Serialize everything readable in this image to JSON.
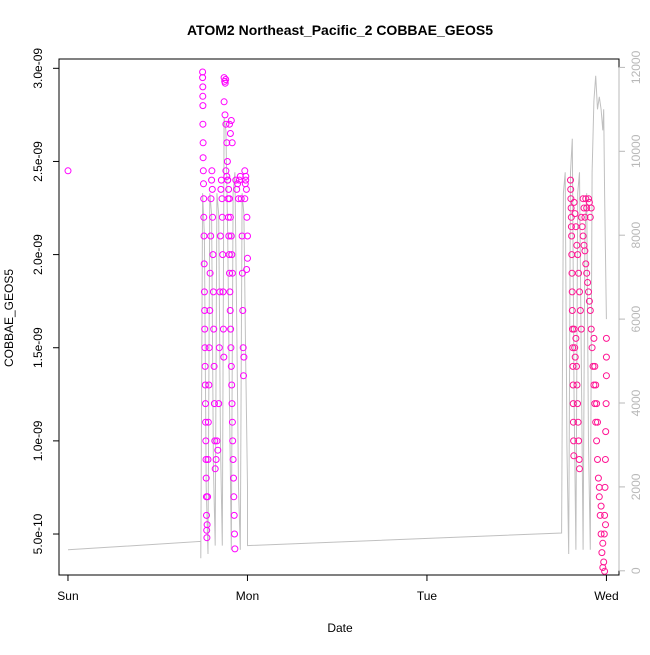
{
  "chart_data": {
    "type": "scatter",
    "title": "ATOM2 Northeast_Pacific_2 COBBAE_GEOS5",
    "xlabel": "Date",
    "ylabel": "COBBAE_GEOS5",
    "x_ticks": [
      {
        "x": 0,
        "label": "Sun"
      },
      {
        "x": 1,
        "label": "Mon"
      },
      {
        "x": 2,
        "label": "Tue"
      },
      {
        "x": 3,
        "label": "Wed"
      }
    ],
    "y_ticks": [
      {
        "value": 5e-10,
        "label": "5.0e-10"
      },
      {
        "value": 1e-09,
        "label": "1.0e-09"
      },
      {
        "value": 1.5e-09,
        "label": "1.5e-09"
      },
      {
        "value": 2e-09,
        "label": "2.0e-09"
      },
      {
        "value": 2.5e-09,
        "label": "2.5e-09"
      },
      {
        "value": 3e-09,
        "label": "3.0e-09"
      }
    ],
    "y2_ticks": [
      {
        "value": 0,
        "label": "0"
      },
      {
        "value": 2000,
        "label": "2000"
      },
      {
        "value": 4000,
        "label": "4000"
      },
      {
        "value": 6000,
        "label": "6000"
      },
      {
        "value": 8000,
        "label": "8000"
      },
      {
        "value": 10000,
        "label": "10000"
      },
      {
        "value": 12000,
        "label": "12000"
      }
    ],
    "xlim": [
      -0.05,
      3.07
    ],
    "ylim": [
      2.8e-10,
      3.05e-09
    ],
    "y2lim": [
      -100,
      12200
    ],
    "grid": false,
    "colors": {
      "magenta": "#ff00ff",
      "pink": "#ff1493",
      "altitude": "#c0c0c0",
      "axis": "#000000",
      "y2_axis": "#b8b8b8"
    },
    "series": [
      {
        "kind": "points",
        "color_key": "magenta",
        "points": [
          [
            0.0,
            2.45e-09
          ],
          [
            0.75,
            2.98e-09
          ],
          [
            0.75,
            2.95e-09
          ],
          [
            0.751,
            2.9e-09
          ],
          [
            0.751,
            2.85e-09
          ],
          [
            0.752,
            2.8e-09
          ],
          [
            0.752,
            2.7e-09
          ],
          [
            0.753,
            2.6e-09
          ],
          [
            0.753,
            2.52e-09
          ],
          [
            0.754,
            2.45e-09
          ],
          [
            0.755,
            2.38e-09
          ],
          [
            0.756,
            2.3e-09
          ],
          [
            0.757,
            2.2e-09
          ],
          [
            0.758,
            2.1e-09
          ],
          [
            0.759,
            1.95e-09
          ],
          [
            0.76,
            1.8e-09
          ],
          [
            0.761,
            1.7e-09
          ],
          [
            0.762,
            1.6e-09
          ],
          [
            0.763,
            1.5e-09
          ],
          [
            0.764,
            1.4e-09
          ],
          [
            0.765,
            1.3e-09
          ],
          [
            0.766,
            1.2e-09
          ],
          [
            0.767,
            1.1e-09
          ],
          [
            0.768,
            1e-09
          ],
          [
            0.769,
            9e-10
          ],
          [
            0.77,
            8e-10
          ],
          [
            0.771,
            7e-10
          ],
          [
            0.772,
            6e-10
          ],
          [
            0.773,
            5.2e-10
          ],
          [
            0.774,
            4.8e-10
          ],
          [
            0.775,
            5.5e-10
          ],
          [
            0.778,
            7e-10
          ],
          [
            0.78,
            9e-10
          ],
          [
            0.782,
            1.1e-09
          ],
          [
            0.785,
            1.3e-09
          ],
          [
            0.787,
            1.5e-09
          ],
          [
            0.79,
            1.7e-09
          ],
          [
            0.792,
            1.9e-09
          ],
          [
            0.795,
            2.1e-09
          ],
          [
            0.797,
            2.3e-09
          ],
          [
            0.8,
            2.4e-09
          ],
          [
            0.802,
            2.45e-09
          ],
          [
            0.804,
            2.35e-09
          ],
          [
            0.806,
            2.2e-09
          ],
          [
            0.808,
            2e-09
          ],
          [
            0.81,
            1.8e-09
          ],
          [
            0.812,
            1.6e-09
          ],
          [
            0.814,
            1.4e-09
          ],
          [
            0.816,
            1.2e-09
          ],
          [
            0.818,
            1e-09
          ],
          [
            0.82,
            8.5e-10
          ],
          [
            0.825,
            9e-10
          ],
          [
            0.83,
            1e-09
          ],
          [
            0.835,
            9.5e-10
          ],
          [
            0.84,
            1.2e-09
          ],
          [
            0.843,
            1.5e-09
          ],
          [
            0.846,
            1.8e-09
          ],
          [
            0.849,
            2.1e-09
          ],
          [
            0.852,
            2.35e-09
          ],
          [
            0.855,
            2.4e-09
          ],
          [
            0.858,
            2.3e-09
          ],
          [
            0.86,
            2.2e-09
          ],
          [
            0.862,
            2e-09
          ],
          [
            0.864,
            1.8e-09
          ],
          [
            0.866,
            1.6e-09
          ],
          [
            0.868,
            1.45e-09
          ],
          [
            0.87,
            2.95e-09
          ],
          [
            0.873,
            2.93e-09
          ],
          [
            0.876,
            2.92e-09
          ],
          [
            0.879,
            2.94e-09
          ],
          [
            0.87,
            2.82e-09
          ],
          [
            0.875,
            2.75e-09
          ],
          [
            0.88,
            2.7e-09
          ],
          [
            0.885,
            2.6e-09
          ],
          [
            0.888,
            2.5e-09
          ],
          [
            0.89,
            2.4e-09
          ],
          [
            0.892,
            2.3e-09
          ],
          [
            0.894,
            2.2e-09
          ],
          [
            0.896,
            2.1e-09
          ],
          [
            0.898,
            2e-09
          ],
          [
            0.9,
            1.9e-09
          ],
          [
            0.902,
            1.8e-09
          ],
          [
            0.904,
            1.7e-09
          ],
          [
            0.906,
            1.6e-09
          ],
          [
            0.908,
            1.5e-09
          ],
          [
            0.91,
            1.4e-09
          ],
          [
            0.912,
            1.3e-09
          ],
          [
            0.914,
            1.2e-09
          ],
          [
            0.916,
            1.1e-09
          ],
          [
            0.918,
            1e-09
          ],
          [
            0.92,
            9e-10
          ],
          [
            0.922,
            8e-10
          ],
          [
            0.924,
            7e-10
          ],
          [
            0.926,
            6e-10
          ],
          [
            0.928,
            5e-10
          ],
          [
            0.93,
            4.2e-10
          ],
          [
            0.88,
            2.45e-09
          ],
          [
            0.885,
            2.42e-09
          ],
          [
            0.89,
            2.4e-09
          ],
          [
            0.895,
            2.35e-09
          ],
          [
            0.9,
            2.3e-09
          ],
          [
            0.905,
            2.2e-09
          ],
          [
            0.91,
            2.1e-09
          ],
          [
            0.913,
            2e-09
          ],
          [
            0.916,
            1.9e-09
          ],
          [
            0.9,
            2.7e-09
          ],
          [
            0.905,
            2.65e-09
          ],
          [
            0.91,
            2.72e-09
          ],
          [
            0.915,
            2.6e-09
          ],
          [
            0.935,
            2.4e-09
          ],
          [
            0.94,
            2.35e-09
          ],
          [
            0.945,
            2.38e-09
          ],
          [
            0.95,
            2.3e-09
          ],
          [
            0.955,
            2.4e-09
          ],
          [
            0.96,
            2.42e-09
          ],
          [
            0.965,
            2.3e-09
          ],
          [
            0.97,
            2.1e-09
          ],
          [
            0.972,
            1.9e-09
          ],
          [
            0.974,
            1.7e-09
          ],
          [
            0.976,
            1.5e-09
          ],
          [
            0.978,
            1.35e-09
          ],
          [
            0.98,
            1.45e-09
          ],
          [
            0.985,
            2.3e-09
          ],
          [
            0.988,
            2.38e-09
          ],
          [
            0.991,
            2.42e-09
          ],
          [
            0.994,
            2.35e-09
          ],
          [
            0.997,
            2.2e-09
          ],
          [
            1.0,
            2.1e-09
          ],
          [
            1.0,
            1.98e-09
          ],
          [
            0.995,
            1.92e-09
          ],
          [
            0.99,
            2.4e-09
          ],
          [
            0.985,
            2.45e-09
          ]
        ]
      },
      {
        "kind": "points",
        "color_key": "pink",
        "points": [
          [
            2.8,
            2.4e-09
          ],
          [
            2.801,
            2.35e-09
          ],
          [
            2.802,
            2.3e-09
          ],
          [
            2.803,
            2.25e-09
          ],
          [
            2.804,
            2.2e-09
          ],
          [
            2.805,
            2.15e-09
          ],
          [
            2.806,
            2.1e-09
          ],
          [
            2.807,
            2e-09
          ],
          [
            2.808,
            1.9e-09
          ],
          [
            2.809,
            1.8e-09
          ],
          [
            2.81,
            1.7e-09
          ],
          [
            2.811,
            1.6e-09
          ],
          [
            2.812,
            1.5e-09
          ],
          [
            2.813,
            1.4e-09
          ],
          [
            2.814,
            1.3e-09
          ],
          [
            2.815,
            1.2e-09
          ],
          [
            2.816,
            1.1e-09
          ],
          [
            2.817,
            1e-09
          ],
          [
            2.818,
            9.2e-10
          ],
          [
            2.82,
            1.6e-09
          ],
          [
            2.823,
            1.5e-09
          ],
          [
            2.826,
            1.45e-09
          ],
          [
            2.83,
            1.55e-09
          ],
          [
            2.833,
            1.4e-09
          ],
          [
            2.836,
            1.3e-09
          ],
          [
            2.839,
            1.2e-09
          ],
          [
            2.842,
            1.1e-09
          ],
          [
            2.845,
            1e-09
          ],
          [
            2.848,
            9e-10
          ],
          [
            2.85,
            8.5e-10
          ],
          [
            2.82,
            2.28e-09
          ],
          [
            2.825,
            2.22e-09
          ],
          [
            2.83,
            2.15e-09
          ],
          [
            2.835,
            2.05e-09
          ],
          [
            2.84,
            2e-09
          ],
          [
            2.845,
            1.9e-09
          ],
          [
            2.85,
            1.8e-09
          ],
          [
            2.855,
            1.7e-09
          ],
          [
            2.86,
            1.6e-09
          ],
          [
            2.86,
            2.2e-09
          ],
          [
            2.865,
            2.15e-09
          ],
          [
            2.87,
            2.1e-09
          ],
          [
            2.875,
            2.05e-09
          ],
          [
            2.88,
            2.02e-09
          ],
          [
            2.885,
            1.95e-09
          ],
          [
            2.89,
            1.9e-09
          ],
          [
            2.895,
            1.85e-09
          ],
          [
            2.9,
            1.8e-09
          ],
          [
            2.905,
            1.75e-09
          ],
          [
            2.91,
            1.7e-09
          ],
          [
            2.915,
            1.6e-09
          ],
          [
            2.92,
            1.5e-09
          ],
          [
            2.925,
            1.4e-09
          ],
          [
            2.93,
            1.3e-09
          ],
          [
            2.935,
            1.2e-09
          ],
          [
            2.94,
            1.1e-09
          ],
          [
            2.945,
            1e-09
          ],
          [
            2.95,
            9e-10
          ],
          [
            2.955,
            8e-10
          ],
          [
            2.96,
            7e-10
          ],
          [
            2.965,
            6e-10
          ],
          [
            2.97,
            5e-10
          ],
          [
            2.975,
            4e-10
          ],
          [
            2.98,
            3.2e-10
          ],
          [
            2.87,
            2.3e-09
          ],
          [
            2.875,
            2.25e-09
          ],
          [
            2.88,
            2.2e-09
          ],
          [
            2.885,
            2.3e-09
          ],
          [
            2.89,
            2.25e-09
          ],
          [
            2.9,
            2.3e-09
          ],
          [
            2.905,
            2.28e-09
          ],
          [
            2.91,
            2.2e-09
          ],
          [
            2.915,
            2.25e-09
          ],
          [
            2.93,
            1.55e-09
          ],
          [
            2.935,
            1.4e-09
          ],
          [
            2.94,
            1.3e-09
          ],
          [
            2.945,
            1.2e-09
          ],
          [
            2.95,
            1.1e-09
          ],
          [
            2.96,
            7.5e-10
          ],
          [
            2.97,
            6.5e-10
          ],
          [
            2.98,
            4.5e-10
          ],
          [
            2.985,
            3.5e-10
          ],
          [
            2.99,
            3e-10
          ],
          [
            2.995,
            5.5e-10
          ],
          [
            3.0,
            1.55e-09
          ],
          [
            3.0,
            1.45e-09
          ],
          [
            3.0,
            1.35e-09
          ],
          [
            2.998,
            1.2e-09
          ],
          [
            2.996,
            1.05e-09
          ],
          [
            2.994,
            9e-10
          ],
          [
            2.992,
            7.5e-10
          ],
          [
            2.99,
            6e-10
          ],
          [
            2.988,
            5e-10
          ]
        ]
      },
      {
        "kind": "line",
        "color_key": "altitude",
        "axis": "y2",
        "points": [
          [
            0.0,
            500
          ],
          [
            0.74,
            700
          ],
          [
            0.74,
            300
          ],
          [
            0.75,
            9000
          ],
          [
            0.76,
            8000
          ],
          [
            0.77,
            2000
          ],
          [
            0.78,
            400
          ],
          [
            0.79,
            9000
          ],
          [
            0.8,
            8500
          ],
          [
            0.81,
            2500
          ],
          [
            0.82,
            600
          ],
          [
            0.83,
            9000
          ],
          [
            0.84,
            8500
          ],
          [
            0.85,
            3000
          ],
          [
            0.86,
            600
          ],
          [
            0.87,
            10800
          ],
          [
            0.88,
            10500
          ],
          [
            0.89,
            8000
          ],
          [
            0.9,
            4000
          ],
          [
            0.91,
            500
          ],
          [
            0.92,
            9000
          ],
          [
            0.93,
            9500
          ],
          [
            0.94,
            6000
          ],
          [
            0.95,
            2000
          ],
          [
            0.96,
            500
          ],
          [
            0.97,
            9000
          ],
          [
            0.98,
            8500
          ],
          [
            0.99,
            5000
          ],
          [
            1.0,
            2000
          ],
          [
            1.0,
            600
          ],
          [
            1.0,
            600
          ],
          [
            2.75,
            900
          ],
          [
            2.75,
            900
          ],
          [
            2.76,
            9000
          ],
          [
            2.77,
            9500
          ],
          [
            2.78,
            3000
          ],
          [
            2.79,
            400
          ],
          [
            2.8,
            9500
          ],
          [
            2.81,
            10300
          ],
          [
            2.82,
            4000
          ],
          [
            2.83,
            500
          ],
          [
            2.84,
            9000
          ],
          [
            2.85,
            9500
          ],
          [
            2.86,
            5000
          ],
          [
            2.87,
            500
          ],
          [
            2.88,
            8000
          ],
          [
            2.89,
            9000
          ],
          [
            2.9,
            3000
          ],
          [
            2.91,
            500
          ],
          [
            2.92,
            9500
          ],
          [
            2.93,
            11200
          ],
          [
            2.94,
            11800
          ],
          [
            2.95,
            11000
          ],
          [
            2.96,
            11300
          ],
          [
            2.97,
            11000
          ],
          [
            2.98,
            10500
          ],
          [
            2.985,
            11000
          ],
          [
            2.99,
            9000
          ],
          [
            3.0,
            6000
          ]
        ]
      }
    ]
  }
}
